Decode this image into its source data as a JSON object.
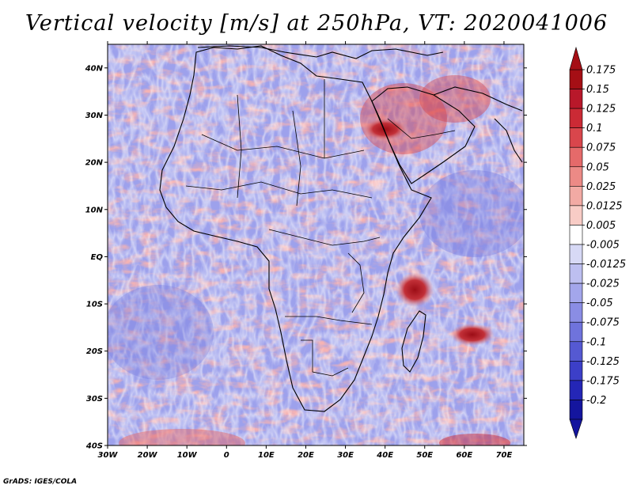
{
  "title": "Vertical velocity [m/s] at 250hPa, VT: 2020041006",
  "credit": "GrADS: IGES/COLA",
  "lat_ticks": [
    {
      "value": 40,
      "label": "40N"
    },
    {
      "value": 30,
      "label": "30N"
    },
    {
      "value": 20,
      "label": "20N"
    },
    {
      "value": 10,
      "label": "10N"
    },
    {
      "value": 0,
      "label": "EQ"
    },
    {
      "value": -10,
      "label": "10S"
    },
    {
      "value": -20,
      "label": "20S"
    },
    {
      "value": -30,
      "label": "30S"
    },
    {
      "value": -40,
      "label": "40S"
    }
  ],
  "lon_ticks": [
    {
      "value": -30,
      "label": "30W"
    },
    {
      "value": -20,
      "label": "20W"
    },
    {
      "value": -10,
      "label": "10W"
    },
    {
      "value": 0,
      "label": "0"
    },
    {
      "value": 10,
      "label": "10E"
    },
    {
      "value": 20,
      "label": "20E"
    },
    {
      "value": 30,
      "label": "30E"
    },
    {
      "value": 40,
      "label": "40E"
    },
    {
      "value": 50,
      "label": "50E"
    },
    {
      "value": 60,
      "label": "60E"
    },
    {
      "value": 70,
      "label": "70E"
    }
  ],
  "extent": {
    "lon_min": -30,
    "lon_max": 75,
    "lat_min": -40,
    "lat_max": 45
  },
  "colorbar": {
    "labels": [
      "0.175",
      "0.15",
      "0.125",
      "0.1",
      "0.075",
      "0.05",
      "0.025",
      "0.0125",
      "0.005",
      "-0.005",
      "-0.0125",
      "-0.025",
      "-0.05",
      "-0.075",
      "-0.1",
      "-0.125",
      "-0.175",
      "-0.2"
    ],
    "colors": [
      "#a50f15",
      "#b8182a",
      "#cb2a35",
      "#d9464c",
      "#e56a6a",
      "#ec8a86",
      "#f2aaa4",
      "#f8ccc6",
      "#ffffff",
      "#d7d9f5",
      "#bdbff0",
      "#a3a6eb",
      "#8a8de4",
      "#6f73dc",
      "#5559d2",
      "#3c3fc8",
      "#2426b6",
      "#14159e"
    ],
    "top_color": "#a50f15",
    "bottom_color": "#14159e"
  },
  "features": [
    {
      "name": "updraft-mozambique-channel",
      "lon": 47.5,
      "lat": -7,
      "strength": "0.175"
    },
    {
      "name": "updraft-southwest-indian-ocean",
      "lon": 62,
      "lat": -16.5,
      "strength": "0.15"
    },
    {
      "name": "updraft-red-sea",
      "lon": 40,
      "lat": 27,
      "strength": "0.125"
    }
  ]
}
